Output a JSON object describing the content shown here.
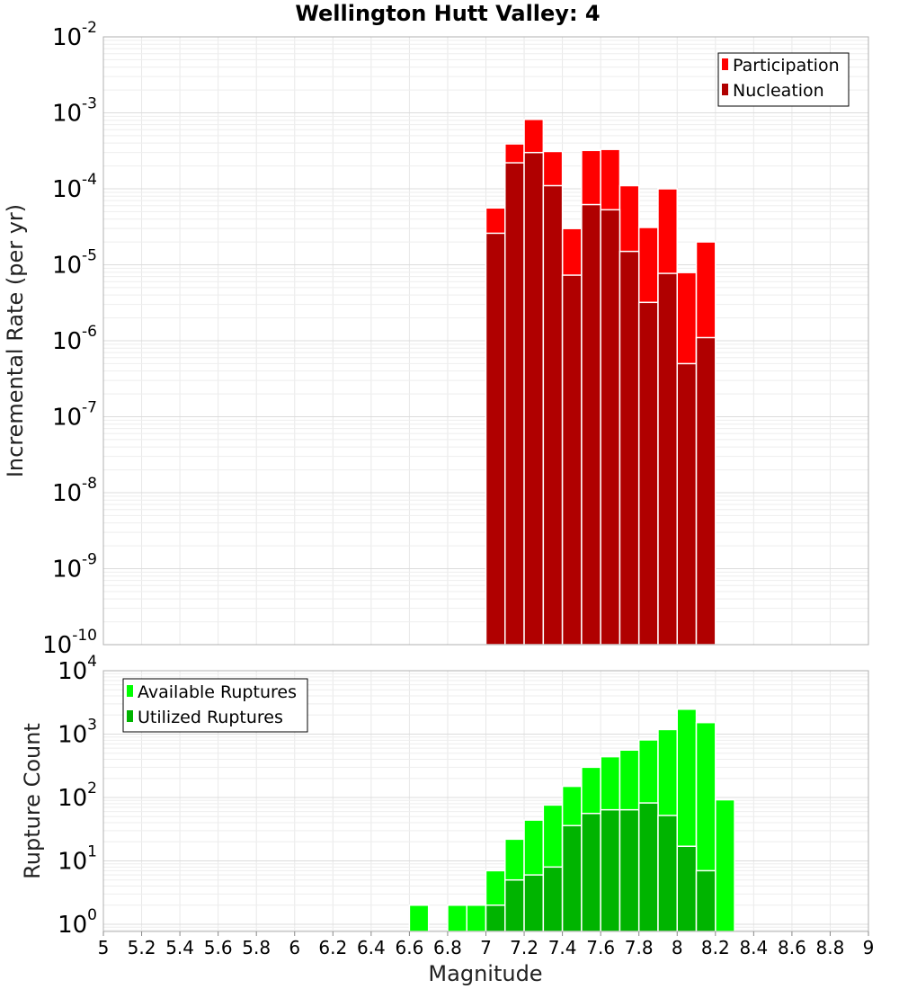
{
  "chart_data": [
    {
      "type": "bar",
      "title": "Wellington Hutt Valley: 4",
      "xlabel": "Magnitude",
      "ylabel": "Incremental Rate (per yr)",
      "y_scale": "log",
      "xlim": [
        5,
        9
      ],
      "ylim": [
        1e-10,
        0.01
      ],
      "grid": true,
      "legend_position": "top-right",
      "bin_width": 0.1,
      "x": [
        7.05,
        7.15,
        7.25,
        7.35,
        7.45,
        7.55,
        7.65,
        7.75,
        7.85,
        7.95,
        8.05,
        8.15
      ],
      "series": [
        {
          "name": "Participation",
          "color": "#ff0000",
          "values": [
            5.6e-05,
            0.00039,
            0.00082,
            0.00031,
            3e-05,
            0.00032,
            0.00033,
            0.00011,
            3.1e-05,
            0.0001,
            7.9e-06,
            2e-05
          ]
        },
        {
          "name": "Nucleation",
          "color": "#b00000",
          "values": [
            2.6e-05,
            0.00022,
            0.0003,
            0.00011,
            7.3e-06,
            6.2e-05,
            5.3e-05,
            1.5e-05,
            3.2e-06,
            7.7e-06,
            5e-07,
            1.1e-06
          ]
        }
      ],
      "y_ticks": [
        {
          "base": "10",
          "exp": "-2",
          "value": 0.01
        },
        {
          "base": "10",
          "exp": "-3",
          "value": 0.001
        },
        {
          "base": "10",
          "exp": "-4",
          "value": 0.0001
        },
        {
          "base": "10",
          "exp": "-5",
          "value": 1e-05
        },
        {
          "base": "10",
          "exp": "-6",
          "value": 1e-06
        },
        {
          "base": "10",
          "exp": "-7",
          "value": 1e-07
        },
        {
          "base": "10",
          "exp": "-8",
          "value": 1e-08
        },
        {
          "base": "10",
          "exp": "-9",
          "value": 1e-09
        },
        {
          "base": "10",
          "exp": "-10",
          "value": 1e-10
        }
      ]
    },
    {
      "type": "bar",
      "xlabel": "Magnitude",
      "ylabel": "Rupture Count",
      "y_scale": "log",
      "xlim": [
        5,
        9
      ],
      "ylim": [
        0.77,
        10000
      ],
      "grid": true,
      "legend_position": "top-left",
      "bin_width": 0.1,
      "x": [
        6.65,
        6.85,
        6.95,
        7.05,
        7.15,
        7.25,
        7.35,
        7.45,
        7.55,
        7.65,
        7.75,
        7.85,
        7.95,
        8.05,
        8.15,
        8.25
      ],
      "series": [
        {
          "name": "Available Ruptures",
          "color": "#00ff00",
          "values": [
            2,
            2,
            2,
            7,
            22,
            44,
            76,
            150,
            300,
            440,
            560,
            810,
            1180,
            2470,
            1520,
            92
          ]
        },
        {
          "name": "Utilized Ruptures",
          "color": "#00b400",
          "values": [
            0,
            0,
            0,
            2,
            5,
            6,
            8,
            36,
            56,
            64,
            64,
            82,
            52,
            17,
            7,
            0
          ]
        }
      ],
      "y_ticks": [
        {
          "base": "10",
          "exp": "4",
          "value": 10000
        },
        {
          "base": "10",
          "exp": "3",
          "value": 1000
        },
        {
          "base": "10",
          "exp": "2",
          "value": 100
        },
        {
          "base": "10",
          "exp": "1",
          "value": 10
        },
        {
          "base": "10",
          "exp": "0",
          "value": 1
        }
      ]
    }
  ],
  "x_ticks": [
    "5",
    "5.2",
    "5.4",
    "5.6",
    "5.8",
    "6",
    "6.2",
    "6.4",
    "6.6",
    "6.8",
    "7",
    "7.2",
    "7.4",
    "7.6",
    "7.8",
    "8",
    "8.2",
    "8.4",
    "8.6",
    "8.8",
    "9"
  ]
}
